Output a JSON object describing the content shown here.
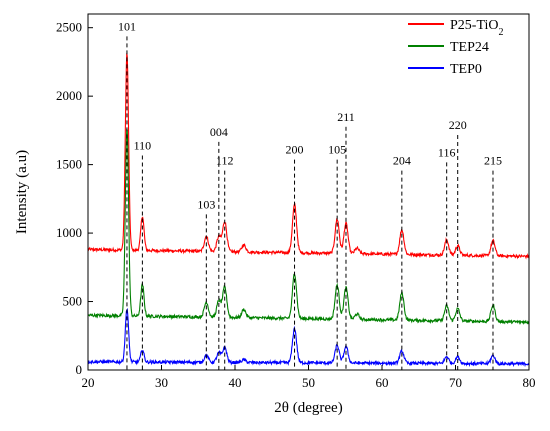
{
  "chart_data": {
    "type": "line",
    "title": "",
    "xlabel": "2θ (degree)",
    "ylabel": "Intensity (a.u)",
    "xlim": [
      20,
      80
    ],
    "ylim": [
      0,
      2600
    ],
    "x_ticks": [
      20,
      30,
      40,
      50,
      60,
      70,
      80
    ],
    "y_ticks": [
      0,
      500,
      1000,
      1500,
      2000,
      2500
    ],
    "grid": false,
    "legend_position": "top-right",
    "series": [
      {
        "name": "P25-TiO",
        "name_subscript": "2",
        "color": "#ff0000",
        "baseline": 880,
        "baseline_end": 830,
        "peaks": [
          [
            25.3,
            1440
          ],
          [
            27.4,
            250
          ],
          [
            36.1,
            110
          ],
          [
            37.8,
            110
          ],
          [
            38.6,
            220
          ],
          [
            41.2,
            50
          ],
          [
            48.1,
            350
          ],
          [
            53.9,
            250
          ],
          [
            55.1,
            220
          ],
          [
            56.6,
            40
          ],
          [
            62.7,
            180
          ],
          [
            68.8,
            110
          ],
          [
            70.3,
            70
          ],
          [
            75.1,
            110
          ]
        ]
      },
      {
        "name": "TEP24",
        "color": "#008000",
        "baseline": 400,
        "baseline_end": 350,
        "peaks": [
          [
            25.3,
            1380
          ],
          [
            27.4,
            230
          ],
          [
            36.1,
            110
          ],
          [
            37.8,
            120
          ],
          [
            38.6,
            220
          ],
          [
            41.2,
            60
          ],
          [
            48.1,
            330
          ],
          [
            53.9,
            250
          ],
          [
            55.1,
            230
          ],
          [
            56.6,
            40
          ],
          [
            62.7,
            200
          ],
          [
            68.8,
            110
          ],
          [
            70.3,
            90
          ],
          [
            75.1,
            120
          ]
        ]
      },
      {
        "name": "TEP0",
        "color": "#0000ff",
        "baseline": 60,
        "baseline_end": 45,
        "peaks": [
          [
            25.3,
            390
          ],
          [
            27.4,
            90
          ],
          [
            36.1,
            50
          ],
          [
            37.8,
            70
          ],
          [
            38.6,
            110
          ],
          [
            41.2,
            20
          ],
          [
            48.1,
            250
          ],
          [
            53.9,
            130
          ],
          [
            55.1,
            120
          ],
          [
            62.7,
            90
          ],
          [
            68.8,
            50
          ],
          [
            70.3,
            50
          ],
          [
            75.1,
            60
          ]
        ]
      }
    ],
    "peak_labels": [
      {
        "label": "101",
        "x": 25.3,
        "y": 2480
      },
      {
        "label": "110",
        "x": 27.4,
        "y": 1610
      },
      {
        "label": "103",
        "x": 36.1,
        "y": 1180
      },
      {
        "label": "004",
        "x": 37.8,
        "y": 1710
      },
      {
        "label": "112",
        "x": 38.6,
        "y": 1500
      },
      {
        "label": "200",
        "x": 48.1,
        "y": 1580
      },
      {
        "label": "105",
        "x": 53.9,
        "y": 1580
      },
      {
        "label": "211",
        "x": 55.1,
        "y": 1820
      },
      {
        "label": "204",
        "x": 62.7,
        "y": 1500
      },
      {
        "label": "116",
        "x": 68.8,
        "y": 1560
      },
      {
        "label": "220",
        "x": 70.3,
        "y": 1760
      },
      {
        "label": "215",
        "x": 75.1,
        "y": 1500
      }
    ]
  }
}
